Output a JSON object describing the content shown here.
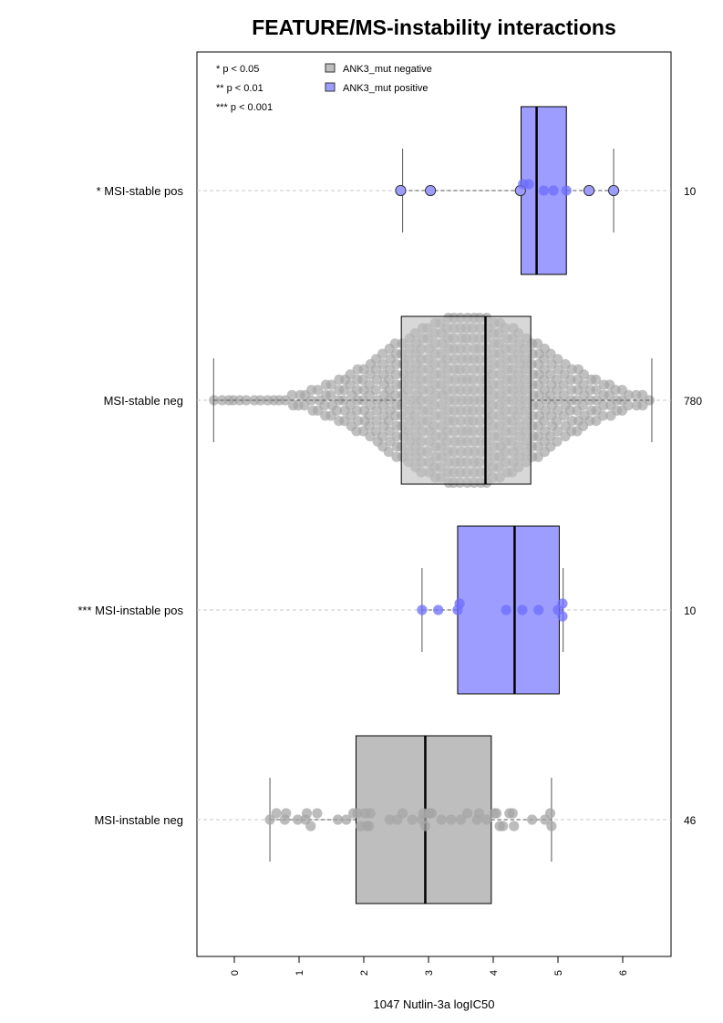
{
  "chart_data": {
    "type": "box",
    "title": "FEATURE/MS-instability interactions",
    "xlabel": "1047 Nutlin-3a logIC50",
    "ylabel": "",
    "xlim": [
      -0.6,
      6.75
    ],
    "xticks": [
      0,
      1,
      2,
      3,
      4,
      5,
      6
    ],
    "grid": "horizontal dashed at each group",
    "significance_legend": [
      "* p < 0.05",
      "** p < 0.01",
      "*** p < 0.001"
    ],
    "legend": [
      {
        "label": "ANK3_mut negative",
        "color": "#bebebe"
      },
      {
        "label": "ANK3_mut positive",
        "color": "#9d9dff"
      }
    ],
    "groups": [
      {
        "label": "* MSI-stable pos",
        "count": "10",
        "mutation": "positive",
        "whisker_low": 2.6,
        "q1": 4.43,
        "median": 4.67,
        "q3": 5.13,
        "whisker_high": 5.86,
        "points": [
          2.57,
          3.03,
          4.42,
          4.46,
          4.55,
          4.78,
          4.93,
          5.13,
          5.48,
          5.86
        ]
      },
      {
        "label": "MSI-stable neg",
        "count": "780",
        "mutation": "negative",
        "whisker_low": -0.32,
        "q1": 2.58,
        "median": 3.88,
        "q3": 4.58,
        "whisker_high": 6.45,
        "point_distribution": "dense swarm (780 points) between -0.32 and 6.45"
      },
      {
        "label": "*** MSI-instable pos",
        "count": "10",
        "mutation": "positive",
        "whisker_low": 2.9,
        "q1": 3.45,
        "median": 4.33,
        "q3": 5.02,
        "whisker_high": 5.08,
        "points": [
          2.9,
          3.15,
          3.45,
          3.48,
          4.2,
          4.45,
          4.7,
          5.0,
          5.07,
          5.07
        ]
      },
      {
        "label": "MSI-instable neg",
        "count": "46",
        "mutation": "negative",
        "whisker_low": 0.55,
        "q1": 1.88,
        "median": 2.95,
        "q3": 3.97,
        "whisker_high": 4.9,
        "points": [
          0.55,
          0.65,
          0.78,
          0.8,
          0.98,
          1.1,
          1.12,
          1.18,
          1.28,
          1.6,
          1.73,
          1.84,
          1.9,
          1.95,
          2.02,
          2.05,
          2.08,
          2.1,
          2.4,
          2.52,
          2.6,
          2.75,
          2.9,
          2.92,
          2.95,
          3.0,
          3.02,
          3.05,
          3.2,
          3.35,
          3.5,
          3.6,
          3.75,
          3.78,
          3.9,
          4.02,
          4.05,
          4.1,
          4.15,
          4.25,
          4.3,
          4.32,
          4.6,
          4.8,
          4.88,
          4.9
        ]
      }
    ]
  }
}
